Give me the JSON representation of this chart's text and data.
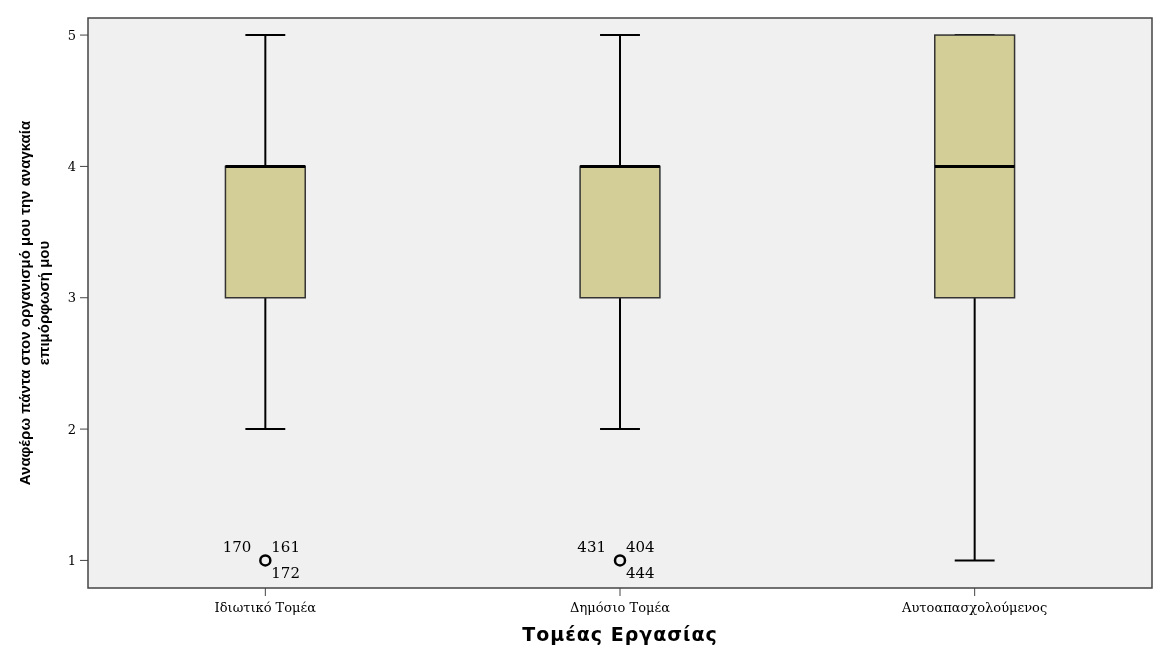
{
  "chart_data": {
    "type": "box",
    "xlabel": "Τομέας Εργασίας",
    "ylabel": "Αναφέρω πάντα στον οργανισμό μου την αναγκαία επιμόρφωσή μου",
    "categories": [
      "Ιδιωτικό Τομέα",
      "Δημόσιο Τομέα",
      "Αυτοαπασχολούμενος"
    ],
    "color": "#d3cd98",
    "boxes": [
      {
        "low": 2,
        "q1": 3,
        "median": 4,
        "q3": 4,
        "high": 5,
        "outliers": [
          1
        ]
      },
      {
        "low": 2,
        "q1": 3,
        "median": 4,
        "q3": 4,
        "high": 5,
        "outliers": [
          1
        ]
      },
      {
        "low": 1,
        "q1": 3,
        "median": 4,
        "q3": 5,
        "high": 5
      }
    ],
    "ylim": [
      0.79,
      5.13
    ],
    "yticks": [
      1,
      2,
      3,
      4,
      5
    ],
    "grid": false,
    "annotations": [
      "170",
      "161",
      "172",
      "431",
      "404",
      "444"
    ]
  }
}
